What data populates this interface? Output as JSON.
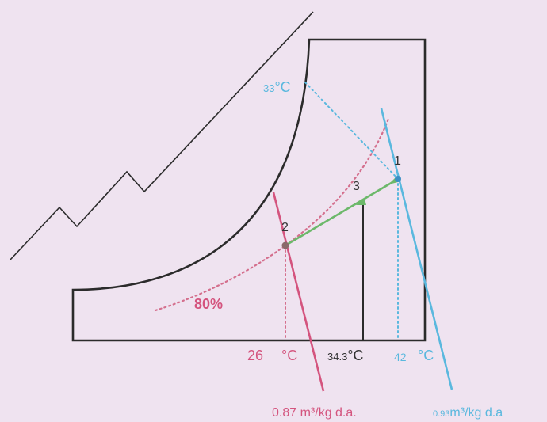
{
  "colors": {
    "background": "#efe3f0",
    "outline": "#2b2b2b",
    "pink": "#d4547e",
    "cyan": "#5ab8de",
    "green": "#6cb86a",
    "dotted_pink": "#d46f8d"
  },
  "points": {
    "p1": "1",
    "p2": "2",
    "p3": "3"
  },
  "labels": {
    "rh": "80%",
    "t33_value": "33",
    "t33_unit": "°C",
    "t26_value": "26",
    "t26_unit": "°C",
    "t34_value": "34.3",
    "t34_unit": "°C",
    "t42_value": "42",
    "t42_unit": "°C",
    "v087": "0.87 m³/kg d.a.",
    "v093_value": "0.93",
    "v093_unit": "m³/kg d.a"
  }
}
